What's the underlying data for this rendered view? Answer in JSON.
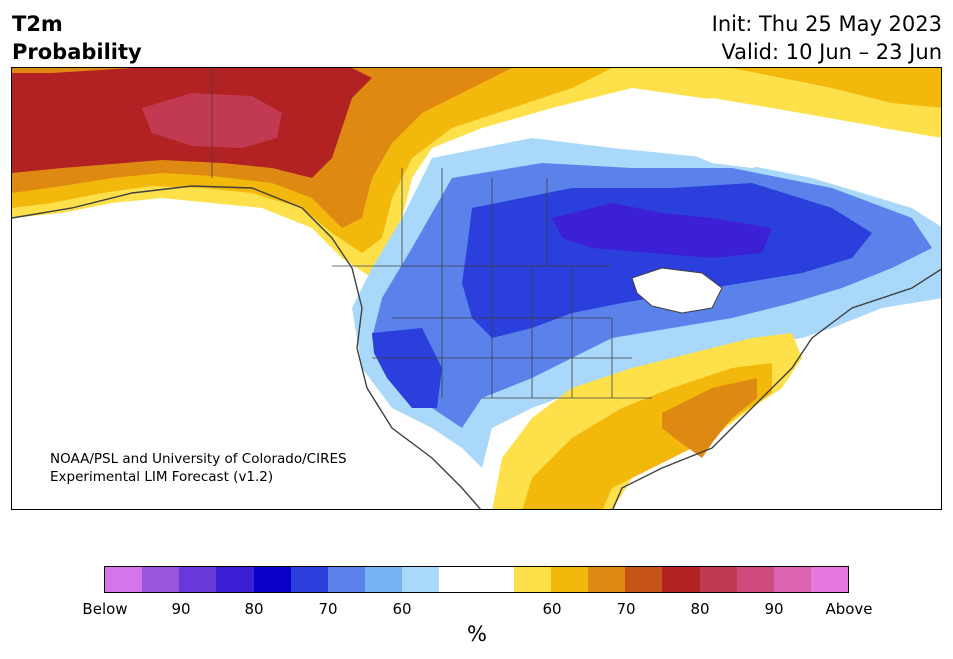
{
  "header": {
    "variable": "T2m",
    "product": "Probability",
    "init": "Init: Thu 25 May 2023",
    "valid": "Valid: 10 Jun – 23 Jun"
  },
  "map": {
    "credit_line1": "NOAA/PSL and University of Colorado/CIRES",
    "credit_line2": "Experimental LIM Forecast (v1.2)",
    "colors": {
      "below_90": "#9a55de",
      "below_80": "#3c20d6",
      "below_70": "#2a3fdb",
      "below_60": "#5a82ea",
      "below_50": "#aad8fa",
      "neutral": "#ffffff",
      "above_50": "#fde04a",
      "above_60": "#f2b80c",
      "above_70": "#de8a12",
      "above_80": "#b22222",
      "above_90": "#c23a52"
    }
  },
  "colorbar": {
    "colors": [
      "#d674ec",
      "#9a55de",
      "#6a37d8",
      "#3c20d6",
      "#0a00c8",
      "#2a3fdb",
      "#5a82ea",
      "#78b4f4",
      "#aad8fa",
      "#ffffff",
      "#ffffff",
      "#fde04a",
      "#f2b80c",
      "#de8a12",
      "#c65418",
      "#b22222",
      "#c23a52",
      "#cf4a7c",
      "#dc62b2",
      "#e878e0"
    ],
    "ticks": [
      "Below",
      "90",
      "80",
      "70",
      "60",
      "60",
      "70",
      "80",
      "90",
      "Above"
    ],
    "unit": "%"
  }
}
